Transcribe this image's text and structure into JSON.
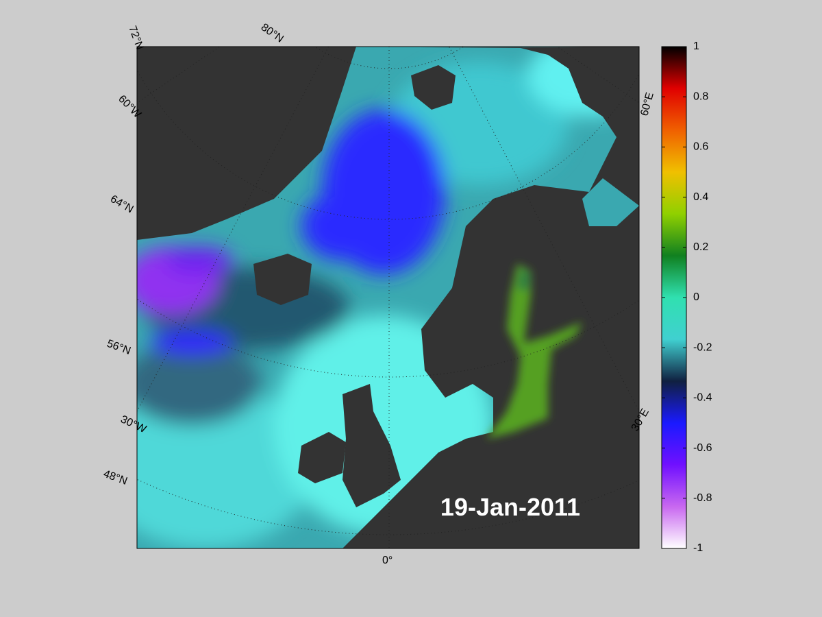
{
  "map": {
    "grid_labels": [
      "72°N",
      "80°N",
      "60°W",
      "64°N",
      "56°N",
      "30°W",
      "48°N",
      "0°",
      "30°E",
      "60°E"
    ],
    "date": "19-Jan-2011"
  },
  "colorbar": {
    "lim": [
      -1,
      1
    ],
    "ticks": [
      1,
      0.8,
      0.6,
      0.4,
      0.2,
      0,
      -0.2,
      -0.4,
      -0.6,
      -0.8,
      -1
    ],
    "colormap": [
      "#ffffff",
      "#c868f0",
      "#7010ff",
      "#1a1aff",
      "#102040",
      "#40d0d0",
      "#30e0b0",
      "#108020",
      "#90d000",
      "#f0c000",
      "#f06000",
      "#e00000",
      "#000000"
    ]
  }
}
